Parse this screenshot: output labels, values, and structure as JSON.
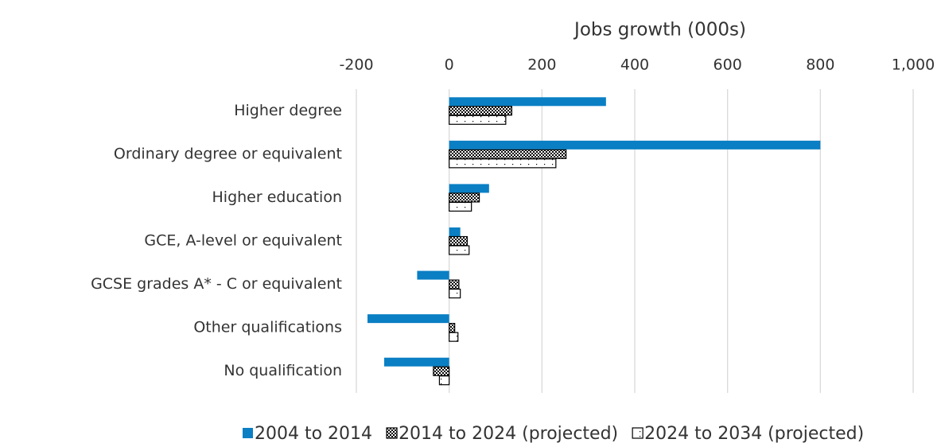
{
  "chart_data": {
    "type": "hbar",
    "x_label": "Jobs growth (000s)",
    "categories": [
      "Higher degree",
      "Ordinary degree or equivalent",
      "Higher education",
      "GCE, A-level or equivalent",
      "GCSE grades A* - C or equivalent",
      "Other qualifications",
      "No qualification"
    ],
    "series": [
      {
        "name": "2004 to 2014",
        "color": "#0a7fc4",
        "pattern": "solid",
        "values": [
          338,
          800,
          86,
          24,
          -69,
          -176,
          -140
        ]
      },
      {
        "name": "2014 to 2024 (projected)",
        "color": "#000000",
        "pattern": "crosshatch",
        "values": [
          135,
          252,
          65,
          39,
          21,
          12,
          -34
        ]
      },
      {
        "name": "2024 to 2034 (projected)",
        "color": "#000000",
        "pattern": "dots",
        "values": [
          122,
          230,
          48,
          43,
          24,
          19,
          -21
        ]
      }
    ],
    "xlim": [
      -200,
      1000
    ],
    "xticks": [
      -200,
      0,
      200,
      400,
      600,
      800,
      {
        "value": 1000,
        "label": "1,000"
      }
    ],
    "grid": true,
    "legend": "bottom"
  }
}
